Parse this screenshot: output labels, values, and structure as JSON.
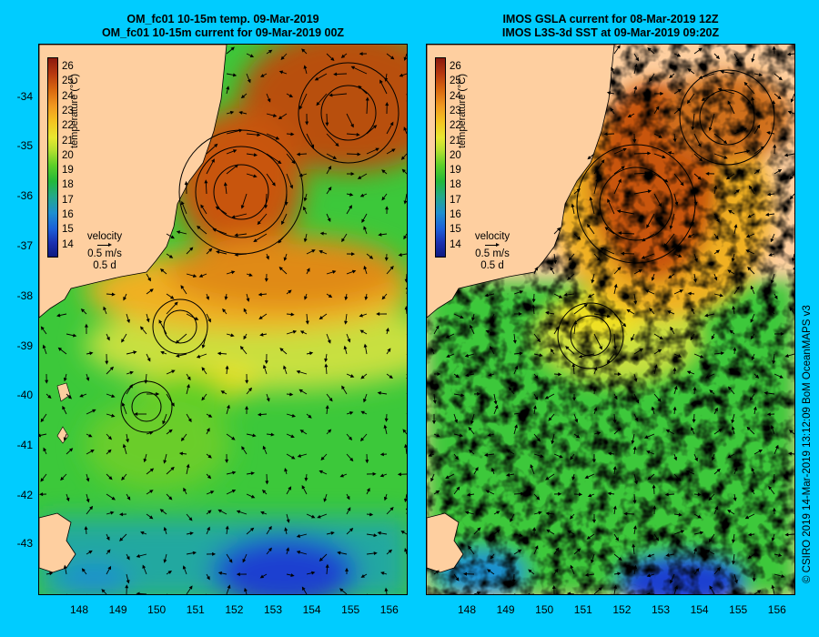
{
  "left_panel": {
    "title_line1": "OM_fc01 10-15m temp. 09-Mar-2019",
    "title_line2": "OM_fc01 10-15m current for 09-Mar-2019 00Z"
  },
  "right_panel": {
    "title_line1": "IMOS GSLA current for 08-Mar-2019 12Z",
    "title_line2": "IMOS L3S-3d SST at 09-Mar-2019 09:20Z"
  },
  "y_axis_labels": [
    "-34",
    "-35",
    "-36",
    "-37",
    "-38",
    "-39",
    "-40",
    "-41",
    "-42",
    "-43"
  ],
  "x_axis_labels": [
    "148",
    "149",
    "150",
    "151",
    "152",
    "153",
    "154",
    "155",
    "156"
  ],
  "colorbar": {
    "ticks": [
      "26",
      "25",
      "24",
      "23",
      "22",
      "21",
      "20",
      "19",
      "18",
      "17",
      "16",
      "15",
      "14"
    ],
    "unit": "temperature (°C)",
    "range": [
      13.5,
      26.5
    ]
  },
  "velocity_legend": {
    "title": "velocity",
    "speed": "0.5 m/s",
    "duration": "0.5 d"
  },
  "credit": "© CSIRO 2019   14-Mar-2019 13:12:09 BoM OceanMAPS v3",
  "colors": {
    "background": "#00ccff",
    "land": "#fecfa0",
    "warm": "#c8550f",
    "yellow": "#f0e020",
    "green": "#3cc83a",
    "cold": "#1a40d0"
  },
  "map_extent": {
    "lon": [
      147.2,
      156.6
    ],
    "lat": [
      -44.0,
      -33.0
    ]
  }
}
